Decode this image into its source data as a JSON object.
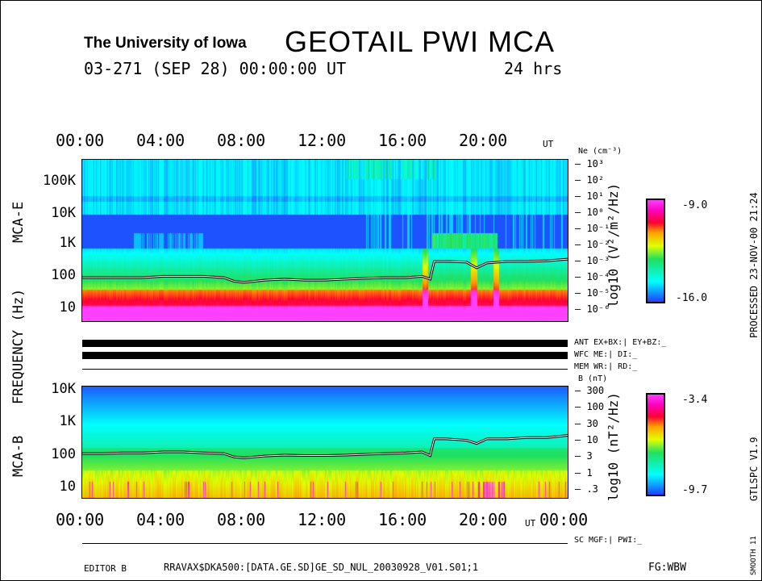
{
  "header": {
    "institution": "The University of Iowa",
    "title": "GEOTAIL  PWI  MCA",
    "date": "03-271 (SEP 28) 00:00:00 UT",
    "duration": "24 hrs"
  },
  "time_ticks": [
    "00:00",
    "04:00",
    "08:00",
    "12:00",
    "16:00",
    "20:00"
  ],
  "time_ticks_bottom": [
    "00:00",
    "04:00",
    "08:00",
    "12:00",
    "16:00",
    "20:00",
    "00:00"
  ],
  "ut_label": "UT",
  "y_label": "FREQUENCY (Hz)",
  "mca_e": {
    "label": "MCA-E",
    "freq_ticks": [
      "100K",
      "10K",
      "1K",
      "100",
      "10"
    ],
    "ne_title": "Ne (cm⁻³)",
    "ne_ticks": [
      "10³",
      "10²",
      "10¹",
      "10⁰",
      "10⁻¹",
      "10⁻²",
      "10⁻³",
      "10⁻⁴",
      "10⁻⁵",
      "10⁻⁶"
    ],
    "cbar_label": "log10 (V²/m²/Hz)",
    "cbar_max": "-9.0",
    "cbar_min": "-16.0"
  },
  "status": {
    "ant": "ANT EX+BX:| EY+BZ:_",
    "wfc": "WFC ME:|     DI:_",
    "mem": "MEM WR:|     RD:_"
  },
  "mca_b": {
    "label": "MCA-B",
    "freq_ticks": [
      "10K",
      "1K",
      "100",
      "10"
    ],
    "b_title": "B (nT)",
    "b_ticks": [
      "300",
      "100",
      "30",
      "10",
      "3",
      "1",
      ".3"
    ],
    "cbar_label": "log10 (nT²/Hz)",
    "cbar_max": "-3.4",
    "cbar_min": "-9.7"
  },
  "sc_status": "SC MGF:|    PWI:_",
  "footer": {
    "editor": "EDITOR B",
    "file": "RRAVAX$DKA500:[DATA.GE.SD]GE_SD_NUL_20030928_V01.S01;1",
    "fg": "FG:WBW"
  },
  "side": {
    "processed": "PROCESSED 23-NOV-00  21:24",
    "version": "GTLSPC   V1.9",
    "smooth": "SMOOTH 11"
  },
  "chart_data": {
    "type": "heatmap",
    "x_unit": "hours UT",
    "xlim": [
      0,
      24
    ],
    "series": [
      {
        "name": "Ne",
        "unit": "cm-3",
        "hours": [
          0,
          1,
          2,
          3,
          4,
          5,
          6,
          7,
          7.5,
          8,
          9,
          10,
          11,
          12,
          13,
          14,
          15,
          16,
          16.8,
          17.2,
          17.4,
          18,
          19,
          19.5,
          20,
          21,
          22,
          23,
          24
        ],
        "values": [
          0.0001,
          0.0001,
          0.0001,
          0.0001,
          0.00012,
          0.00012,
          0.00012,
          0.0001,
          6e-05,
          5e-05,
          7e-05,
          8e-05,
          7e-05,
          7e-05,
          8e-05,
          9e-05,
          0.0001,
          0.0001,
          0.00012,
          8e-05,
          0.001,
          0.001,
          0.0009,
          0.0004,
          0.0008,
          0.001,
          0.001,
          0.0011,
          0.0014
        ]
      },
      {
        "name": "B",
        "unit": "nT",
        "hours": [
          0,
          1,
          2,
          3,
          4,
          5,
          6,
          7,
          7.5,
          8,
          9,
          10,
          11,
          12,
          13,
          14,
          15,
          16,
          16.8,
          17.2,
          17.4,
          18,
          19,
          19.5,
          20,
          21,
          22,
          23,
          24
        ],
        "values": [
          4,
          4,
          4.2,
          4.2,
          4.5,
          4.5,
          4.2,
          4,
          3.2,
          3,
          3.4,
          3.6,
          3.5,
          3.5,
          3.6,
          3.8,
          4,
          4.2,
          4.5,
          3.5,
          11,
          11,
          10,
          8,
          11,
          11,
          12,
          12,
          14
        ]
      }
    ]
  }
}
